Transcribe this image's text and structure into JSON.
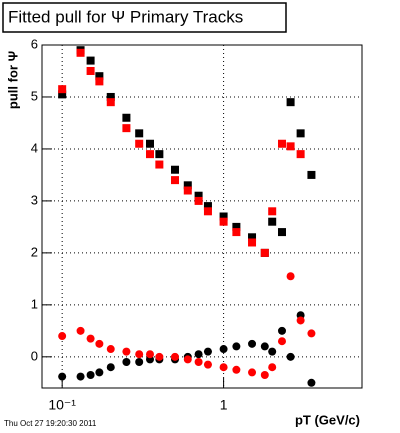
{
  "chart_data": {
    "type": "scatter",
    "title": "Fitted pull for  Ψ   Primary Tracks",
    "y_label": "pull for Ψ",
    "x_label": "pT (GeV/c)",
    "footer": "Thu Oct 27 19:20:30 2011",
    "log_x": true,
    "grid": true,
    "xlim": [
      0.075,
      7.2
    ],
    "xticks": [
      {
        "value": 0.1,
        "label": "10⁻¹"
      },
      1
    ],
    "ylim": [
      -0.6,
      6
    ],
    "yticks": [
      0,
      1,
      2,
      3,
      4,
      5,
      6
    ],
    "x": [
      0.1,
      0.13,
      0.15,
      0.17,
      0.2,
      0.25,
      0.3,
      0.35,
      0.4,
      0.5,
      0.6,
      0.7,
      0.8,
      1.0,
      1.2,
      1.5,
      1.8,
      2.0,
      2.3,
      2.6,
      3.0,
      3.5
    ],
    "series": [
      {
        "color": "#000000",
        "marker": "square",
        "values": [
          5.05,
          5.9,
          5.7,
          5.4,
          5.0,
          4.6,
          4.3,
          4.1,
          3.9,
          3.6,
          3.3,
          3.1,
          2.9,
          2.7,
          2.5,
          2.3,
          2.0,
          2.6,
          2.4,
          4.9,
          4.3,
          3.5
        ]
      },
      {
        "color": "#ff0000",
        "marker": "square",
        "values": [
          5.15,
          5.85,
          5.5,
          5.3,
          4.9,
          4.4,
          4.1,
          3.9,
          3.7,
          3.4,
          3.2,
          3.0,
          2.8,
          2.6,
          2.4,
          2.2,
          2.0,
          2.8,
          4.1,
          4.05,
          3.9,
          null
        ]
      },
      {
        "color": "#000000",
        "marker": "circle",
        "values": [
          -0.38,
          -0.38,
          -0.35,
          -0.3,
          -0.2,
          -0.1,
          -0.1,
          -0.05,
          -0.05,
          -0.05,
          0.0,
          0.05,
          0.1,
          0.15,
          0.2,
          0.25,
          0.2,
          0.1,
          0.5,
          0.0,
          0.8,
          -0.5
        ]
      },
      {
        "color": "#ff0000",
        "marker": "circle",
        "values": [
          0.4,
          0.5,
          0.35,
          0.25,
          0.15,
          0.1,
          0.05,
          0.05,
          0.0,
          0.0,
          -0.05,
          -0.1,
          -0.15,
          -0.2,
          -0.25,
          -0.3,
          -0.35,
          -0.2,
          0.3,
          1.55,
          0.7,
          0.45
        ]
      }
    ]
  }
}
